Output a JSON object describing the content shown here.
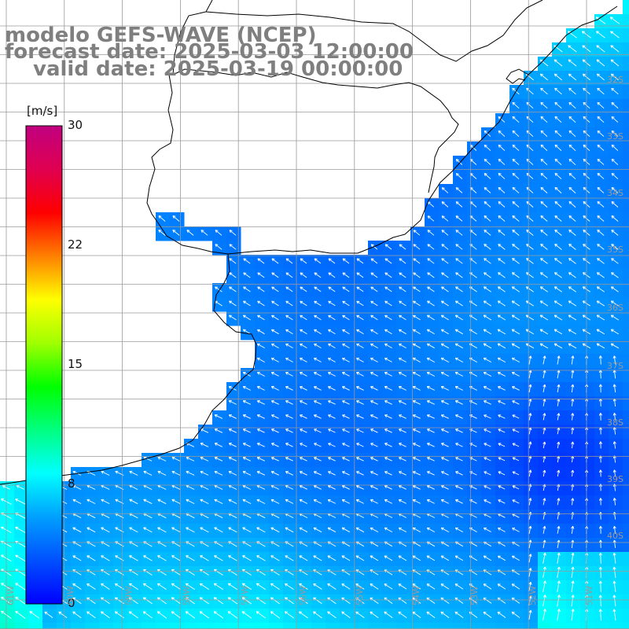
{
  "header": {
    "model": "modelo GEFS-WAVE (NCEP)",
    "forecast_date": "forecast date: 2025-03-03 12:00:00",
    "valid_date": "valid date: 2025-03-19 00:00:00"
  },
  "colorbar": {
    "unit": "[m/s]",
    "ticks": [
      "30",
      "22",
      "15",
      "8",
      "0"
    ],
    "tick_values": [
      30,
      22,
      15,
      8,
      0
    ],
    "range": [
      0,
      30
    ],
    "colors": [
      "#0000ff",
      "#0050ff",
      "#00a0ff",
      "#00ffff",
      "#00ff80",
      "#00ff00",
      "#a0ff00",
      "#ffff00",
      "#ff8000",
      "#ff0000",
      "#e00050",
      "#c00080"
    ]
  },
  "map": {
    "ocean_dominant_color": "#1e90ff",
    "land_color": "#ffffff",
    "coastline_color": "#000000",
    "grid_color": "#9a9a9a",
    "arrow_color": "#ffffff",
    "lat_labels": [
      "32S",
      "33S",
      "34S",
      "35S",
      "36S",
      "37S",
      "38S",
      "39S",
      "40S"
    ],
    "lon_labels": [
      "61W",
      "60W",
      "59W",
      "58W",
      "57W",
      "56W",
      "55W",
      "54W",
      "53W",
      "52W",
      "51W"
    ]
  }
}
